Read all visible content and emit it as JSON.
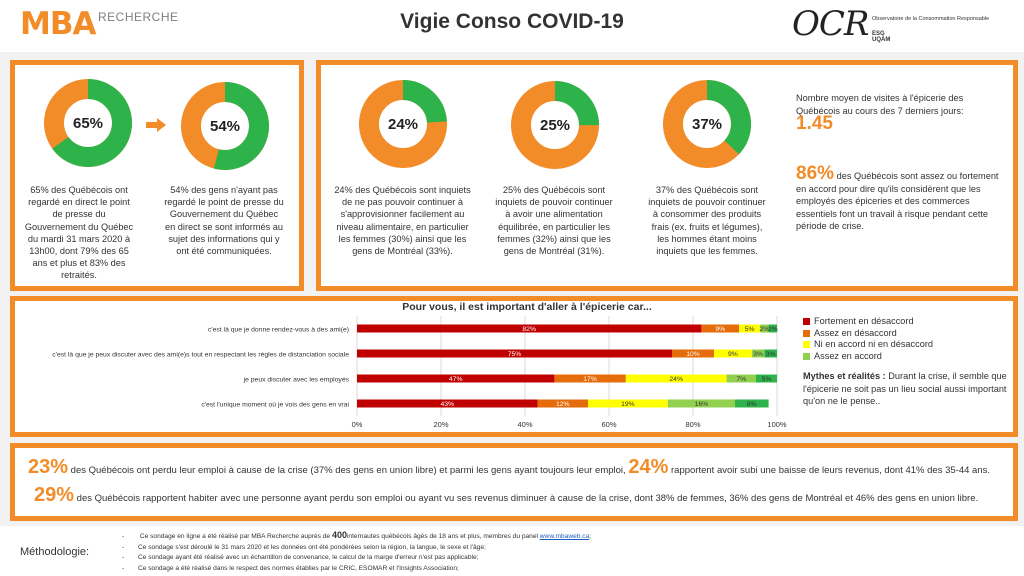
{
  "header": {
    "logo_left": "MBA",
    "logo_left_sub": "RECHERCHE",
    "title": "Vigie Conso COVID-19",
    "logo_right": "OCR",
    "logo_right_sub": "Observatoire de la Consommation Responsable",
    "logo_right_school": "ESG UQÀM"
  },
  "colors": {
    "accent": "#f28c28",
    "green": "#2db34a",
    "strongly_disagree": "#c00000",
    "disagree": "#e46c0a",
    "neutral": "#ffff00",
    "agree": "#92d050"
  },
  "panel1": {
    "donuts": [
      {
        "label": "65%",
        "value": 65,
        "text": "65% des Québécois ont regardé en direct le point de presse du Gouvernement du Québec du mardi 31 mars 2020 à 13h00, dont 79% des 65 ans et plus et 83% des retraités."
      },
      {
        "label": "54%",
        "value": 54,
        "text": "54% des gens n'ayant pas regardé le point de presse du Gouvernement du Québec en direct se sont informés au sujet des informations qui y ont été communiquées."
      }
    ]
  },
  "panel2": {
    "donuts": [
      {
        "label": "24%",
        "value": 24,
        "text": "24% des Québécois sont inquiets de ne pas pouvoir continuer à s'approvisionner facilement au niveau alimentaire, en particulier les femmes (30%) ainsi que les gens de Montréal (33%)."
      },
      {
        "label": "25%",
        "value": 25,
        "text": "25% des Québécois sont inquiets de pouvoir continuer à avoir une alimentation équilibrée, en particulier les femmes (32%) ainsi que les gens de Montréal (31%)."
      },
      {
        "label": "37%",
        "value": 37,
        "text": "37% des Québécois sont inquiets de pouvoir continuer à consommer des produits frais (ex. fruits et légumes), les hommes étant moins inquiets que les femmes."
      }
    ],
    "visits_text": "Nombre moyen de visites à l'épicerie des Québécois au cours des 7 derniers jours:",
    "visits_value": "1.45",
    "risk_value": "86%",
    "risk_text": "des Québécois sont assez ou fortement en accord pour dire qu'ils considèrent que les employés des épiceries et des commerces essentiels font un travail à risque pendant cette période de crise."
  },
  "chart_data": {
    "type": "bar",
    "orientation": "horizontal",
    "stacked": true,
    "title": "Pour vous, il est important d'aller à l'épicerie car...",
    "categories": [
      "c'est là que je donne rendez-vous à des ami(e)",
      "c'est là que je peux discuter avec des ami(e)s tout en respectant les règles de distanciation sociale",
      "je peux discuter avec les employés",
      "c'est l'unique moment où je vois des gens en vrai"
    ],
    "series": [
      {
        "name": "Fortement en désaccord",
        "values": [
          82,
          75,
          47,
          43
        ],
        "labels": [
          "82%",
          "75%",
          "47%",
          "43%"
        ]
      },
      {
        "name": "Assez en désaccord",
        "values": [
          9,
          10,
          17,
          12
        ],
        "labels": [
          "9%",
          "10%",
          "17%",
          "12%"
        ]
      },
      {
        "name": "Ni en accord ni en désaccord",
        "values": [
          5,
          9,
          24,
          19
        ],
        "labels": [
          "5%",
          "9%",
          "24%",
          "19%"
        ]
      },
      {
        "name": "Assez en accord",
        "values": [
          2,
          3,
          7,
          16
        ],
        "labels": [
          "2%",
          "3%",
          "7%",
          "16%"
        ]
      },
      {
        "name": "Fortement en accord",
        "values": [
          2,
          3,
          5,
          8
        ],
        "labels": [
          "2%",
          "3%",
          "5%",
          "8%"
        ]
      }
    ],
    "xlim": [
      0,
      100
    ],
    "xticks": [
      "0%",
      "20%",
      "40%",
      "60%",
      "80%",
      "100%"
    ],
    "grid": true,
    "legend_position": "right"
  },
  "myth": {
    "label": "Mythes et réalités :",
    "text": "Durant la crise, il semble que l'épicerie ne soit pas un lieu social aussi important qu'on ne le pense.."
  },
  "stats": {
    "s1_value": "23%",
    "s1_text": "des Québécois ont perdu leur emploi à cause de la crise (37% des gens en union libre) et parmi les gens ayant toujours leur emploi,",
    "s2_value": "24%",
    "s2_text": "rapportent avoir subi une baisse de leurs revenus, dont 41% des 35-44 ans.",
    "s3_value": "29%",
    "s3_text": "des Québécois rapportent habiter avec une personne ayant perdu son emploi ou ayant vu ses revenus diminuer à cause de la crise, dont 38% de femmes, 36% des gens de Montréal et 46% des gens en union libre."
  },
  "methodology": {
    "label": "Méthodologie:",
    "line1_pre": "Ce sondage en ligne a été réalisé par MBA Recherche auprès de",
    "line1_num": "400",
    "line1_post": "internautes québécois âgés de 18 ans et plus, membres du panel",
    "line1_link": "www.mbaweb.ca",
    "line1_end": ";",
    "line2": "Ce sondage s'est déroulé le 31 mars 2020 et les données ont été pondérées selon la région, la langue, le sexe et l'âge;",
    "line3": "Ce sondage ayant été réalisé avec un échantillon de convenance, le calcul de la marge d'erreur n'est pas applicable;",
    "line4": "Ce sondage a été réalisé dans le respect des normes établies par le CRIC, ESOMAR et l'Insights Association;"
  }
}
